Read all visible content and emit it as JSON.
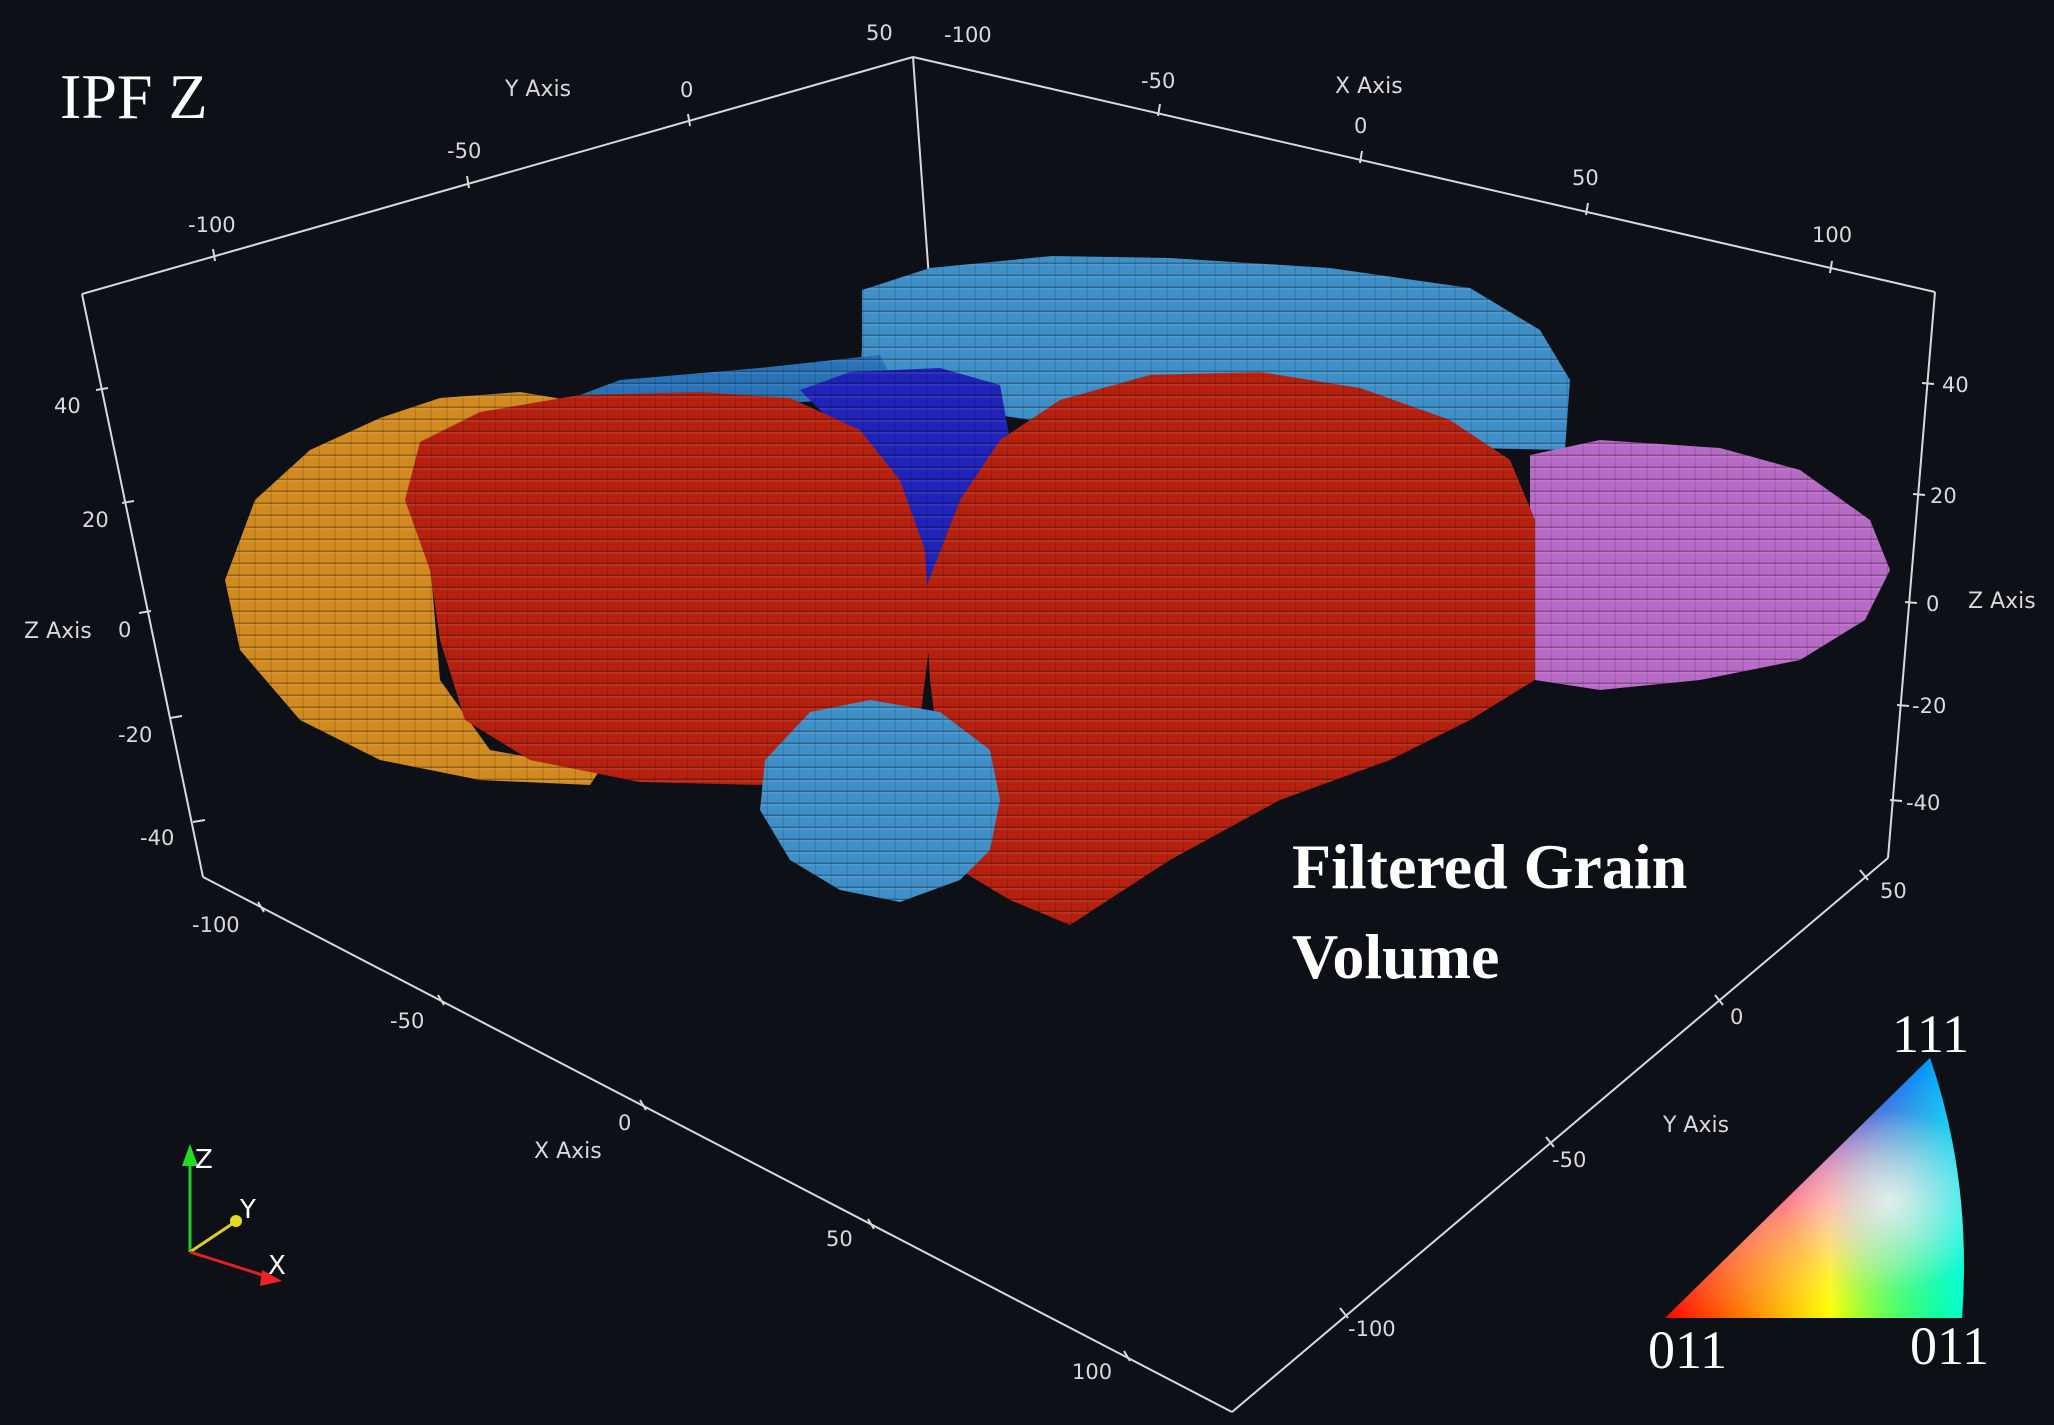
{
  "title": "IPF Z",
  "caption": {
    "line1": "Filtered Grain",
    "line2": "Volume"
  },
  "axes": {
    "y_top": {
      "label": "Y Axis",
      "ticks": [
        "-100",
        "-50",
        "0",
        "50"
      ]
    },
    "x_top": {
      "label": "X Axis",
      "ticks": [
        "-100",
        "-50",
        "0",
        "50",
        "100"
      ]
    },
    "z_left": {
      "label": "Z Axis",
      "ticks": [
        "40",
        "20",
        "0",
        "-20",
        "-40"
      ]
    },
    "z_right": {
      "label": "Z Axis",
      "ticks": [
        "40",
        "20",
        "0",
        "-20",
        "-40"
      ]
    },
    "x_bottom": {
      "label": "X Axis",
      "ticks": [
        "-100",
        "-50",
        "0",
        "50",
        "100"
      ]
    },
    "y_bottom": {
      "label": "Y Axis",
      "ticks": [
        "50",
        "0",
        "-50",
        "-100"
      ]
    }
  },
  "orientation_triad": {
    "z": "Z",
    "y": "Y",
    "x": "X"
  },
  "ipf_legend": {
    "top": "111",
    "bottom_left": "011",
    "bottom_right": "011"
  },
  "grain_colors": {
    "orange": "#d08a1f",
    "red": "#b5200f",
    "dark_blue": "#1f23b8",
    "light_blue": "#3f8fc8",
    "purple": "#b86bc6"
  }
}
